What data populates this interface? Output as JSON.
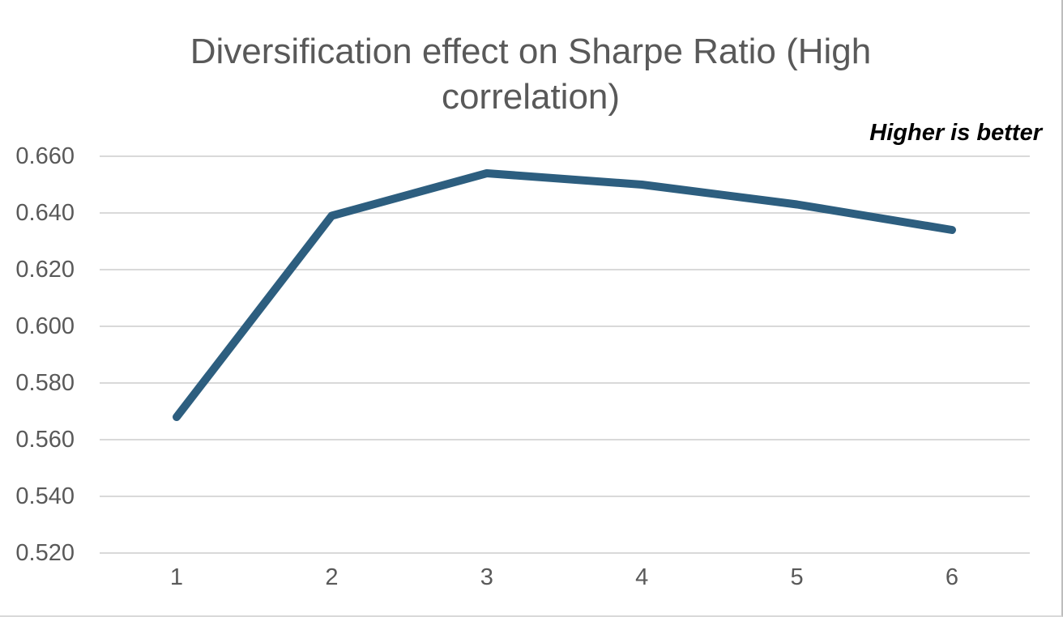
{
  "chart": {
    "title_lines": [
      "Diversification effect on Sharpe Ratio (High",
      "correlation)"
    ],
    "annotation": "Higher is better"
  },
  "chart_data": {
    "type": "line",
    "title": "Diversification effect on Sharpe Ratio (High correlation)",
    "annotation": "Higher is better",
    "categories": [
      "1",
      "2",
      "3",
      "4",
      "5",
      "6"
    ],
    "values": [
      0.568,
      0.639,
      0.654,
      0.65,
      0.643,
      0.634
    ],
    "xlabel": "",
    "ylabel": "",
    "ylim": [
      0.52,
      0.66
    ],
    "ytick_interval": 0.02,
    "yticks": [
      "0.660",
      "0.640",
      "0.620",
      "0.600",
      "0.580",
      "0.560",
      "0.540",
      "0.520"
    ],
    "grid": true,
    "legend": false
  },
  "colors": {
    "line": "#2D5E7F",
    "gridline": "#D9D9D9",
    "title": "#595959",
    "axis_labels": "#595959",
    "annotation": "#000000",
    "background": "#FFFFFF"
  }
}
